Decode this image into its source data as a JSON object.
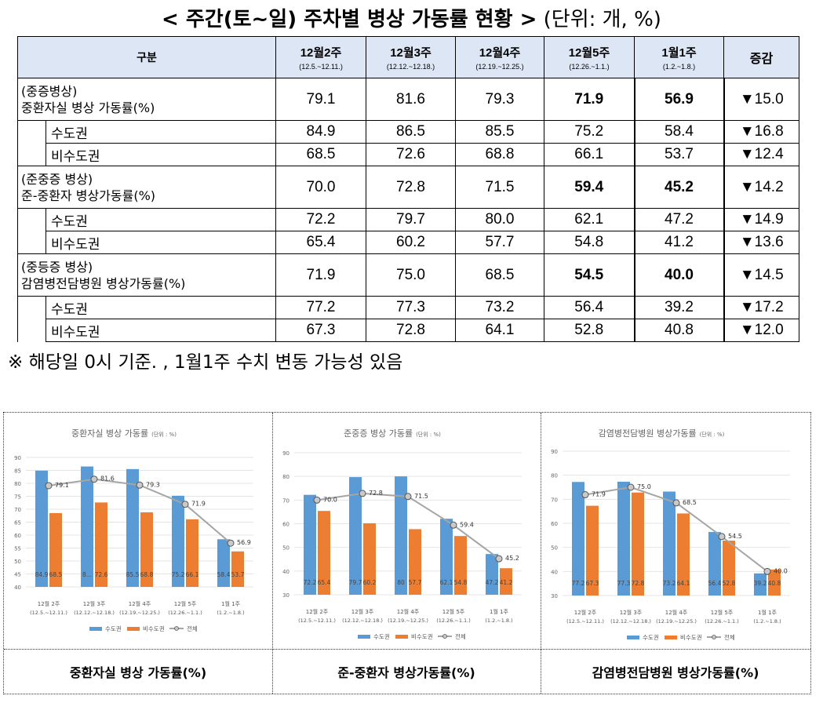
{
  "title": {
    "main": "< 주간(토~일) 주차별 병상 가동률 현황 >",
    "unit": "(단위: 개, %)"
  },
  "table": {
    "headers": {
      "category": "구분",
      "weeks": [
        {
          "label": "12월2주",
          "range": "(12.5.~12.11.)"
        },
        {
          "label": "12월3주",
          "range": "(12.12.~12.18.)"
        },
        {
          "label": "12월4주",
          "range": "(12.19.~12.25.)"
        },
        {
          "label": "12월5주",
          "range": "(12.26.~1.1.)"
        },
        {
          "label": "1월1주",
          "range": "(1.2.~1.8.)"
        }
      ],
      "change": "증감"
    },
    "rows": [
      {
        "label1": "(중증병상)",
        "label2": "중환자실 병상 가동률(%)",
        "values": [
          "79.1",
          "81.6",
          "79.3",
          "71.9",
          "56.9"
        ],
        "change": "▼15.0"
      },
      {
        "label": "수도권",
        "values": [
          "84.9",
          "86.5",
          "85.5",
          "75.2",
          "58.4"
        ],
        "change": "▼16.8"
      },
      {
        "label": "비수도권",
        "values": [
          "68.5",
          "72.6",
          "68.8",
          "66.1",
          "53.7"
        ],
        "change": "▼12.4"
      },
      {
        "label1": "(준중증 병상)",
        "label2": "준-중환자 병상가동률(%)",
        "values": [
          "70.0",
          "72.8",
          "71.5",
          "59.4",
          "45.2"
        ],
        "change": "▼14.2"
      },
      {
        "label": "수도권",
        "values": [
          "72.2",
          "79.7",
          "80.0",
          "62.1",
          "47.2"
        ],
        "change": "▼14.9"
      },
      {
        "label": "비수도권",
        "values": [
          "65.4",
          "60.2",
          "57.7",
          "54.8",
          "41.2"
        ],
        "change": "▼13.6"
      },
      {
        "label1": "(중등증 병상)",
        "label2": "감염병전담병원 병상가동률(%)",
        "values": [
          "71.9",
          "75.0",
          "68.5",
          "54.5",
          "40.0"
        ],
        "change": "▼14.5"
      },
      {
        "label": "수도권",
        "values": [
          "77.2",
          "77.3",
          "73.2",
          "56.4",
          "39.2"
        ],
        "change": "▼17.2"
      },
      {
        "label": "비수도권",
        "values": [
          "67.3",
          "72.8",
          "64.1",
          "52.8",
          "40.8"
        ],
        "change": "▼12.0"
      }
    ]
  },
  "note": "※ 해당일 0시 기준. , 1월1주 수치 변동 가능성 있음",
  "colors": {
    "capital": "#5b9bd5",
    "noncapital": "#ed7d31",
    "total": "#a5a5a5",
    "header_bg": "#dde6f4"
  },
  "chart_data": [
    {
      "type": "bar",
      "title": "중환자실 병상 가동률",
      "title_unit": "(단위 : %)",
      "caption": "중환자실 병상 가동률(%)",
      "categories": [
        "12월 2주",
        "12월 3주",
        "12월 4주",
        "12월 5주",
        "1월 1주"
      ],
      "category_ranges": [
        "(12.5.~12.11.)",
        "(12.12.~12.18.)",
        "(12.19.~12.25.)",
        "(12.26.~1.1.)",
        "(1.2.~1.8.)"
      ],
      "ylim": [
        40,
        90
      ],
      "ystep": 5,
      "y_ticks": [
        "40",
        "45",
        "50",
        "55",
        "60",
        "65",
        "70",
        "75",
        "80",
        "85",
        "90"
      ],
      "series": [
        {
          "name": "수도권",
          "type": "bar",
          "values": [
            84.9,
            86.5,
            85.5,
            75.2,
            58.4
          ],
          "labels": [
            "84.9",
            "8...",
            "85.5",
            "75.2",
            "58.4"
          ]
        },
        {
          "name": "비수도권",
          "type": "bar",
          "values": [
            68.5,
            72.6,
            68.8,
            66.1,
            53.7
          ],
          "labels": [
            "68.5",
            "72.6",
            "68.8",
            "66.1",
            "53.7"
          ]
        },
        {
          "name": "전체",
          "type": "line",
          "values": [
            79.1,
            81.6,
            79.3,
            71.9,
            56.9
          ],
          "labels": [
            "79.1",
            "81.6",
            "79.3",
            "71.9",
            "56.9"
          ]
        }
      ]
    },
    {
      "type": "bar",
      "title": "준중증 병상 가동률",
      "title_unit": "(단위 : %)",
      "caption": "준-중환자 병상가동률(%)",
      "categories": [
        "12월 2주",
        "12월 3주",
        "12월 4주",
        "12월 5주",
        "1월 1주"
      ],
      "category_ranges": [
        "(12.5.~12.11.)",
        "(12.12.~12.18.)",
        "(12.19.~12.25.)",
        "(12.26.~1.1.)",
        "(1.2.~1.8.)"
      ],
      "ylim": [
        30,
        90
      ],
      "ystep": 10,
      "y_ticks": [
        "30",
        "40",
        "50",
        "60",
        "70",
        "80",
        "90"
      ],
      "series": [
        {
          "name": "수도권",
          "type": "bar",
          "values": [
            72.2,
            79.7,
            80.0,
            62.1,
            47.2
          ],
          "labels": [
            "72.2",
            "79.7",
            "80",
            "62.1",
            "47.2"
          ]
        },
        {
          "name": "비수도권",
          "type": "bar",
          "values": [
            65.4,
            60.2,
            57.7,
            54.8,
            41.2
          ],
          "labels": [
            "65.4",
            "60.2",
            "57.7",
            "54.8",
            "41.2"
          ]
        },
        {
          "name": "전체",
          "type": "line",
          "values": [
            70.0,
            72.8,
            71.5,
            59.4,
            45.2
          ],
          "labels": [
            "70.0",
            "72.8",
            "71.5",
            "59.4",
            "45.2"
          ]
        }
      ]
    },
    {
      "type": "bar",
      "title": "감염병전담병원 병상가동률",
      "title_unit": "(단위 : %)",
      "caption": "감염병전담병원 병상가동률(%)",
      "categories": [
        "12월 2주",
        "12월 3주",
        "12월 4주",
        "12월 5주",
        "1월 1주"
      ],
      "category_ranges": [
        "(12.5.~12.11.)",
        "(12.12.~12.18.)",
        "(12.19.~12.25.)",
        "(12.26.~1.1.)",
        "(1.2.~1.8.)"
      ],
      "ylim": [
        30,
        90
      ],
      "ystep": 10,
      "y_ticks": [
        "30",
        "40",
        "50",
        "60",
        "70",
        "80",
        "90"
      ],
      "series": [
        {
          "name": "수도권",
          "type": "bar",
          "values": [
            77.2,
            77.3,
            73.2,
            56.4,
            39.2
          ],
          "labels": [
            "77.2",
            "77.3",
            "73.2",
            "56.4",
            "39.2"
          ]
        },
        {
          "name": "비수도권",
          "type": "bar",
          "values": [
            67.3,
            72.8,
            64.1,
            52.8,
            40.8
          ],
          "labels": [
            "67.3",
            "72.8",
            "64.1",
            "52.8",
            "40.8"
          ]
        },
        {
          "name": "전체",
          "type": "line",
          "values": [
            71.9,
            75.0,
            68.5,
            54.5,
            40.0
          ],
          "labels": [
            "71.9",
            "75.0",
            "68.5",
            "54.5",
            "40.0"
          ]
        }
      ]
    }
  ]
}
